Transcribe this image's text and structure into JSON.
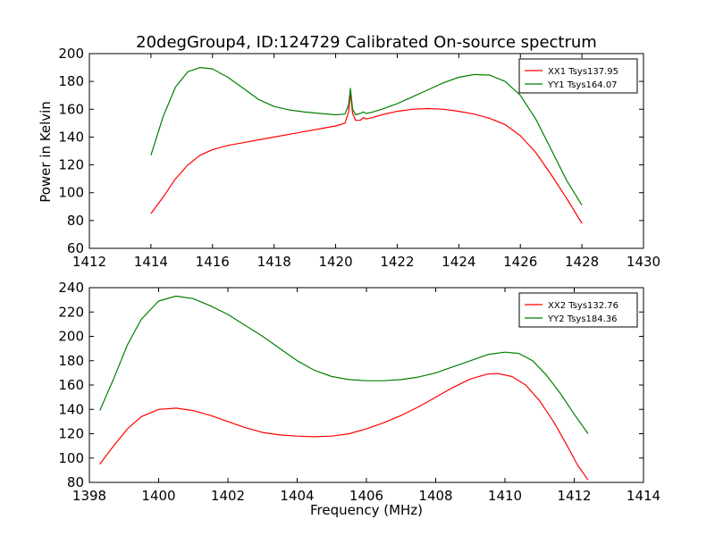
{
  "chart_data": [
    {
      "type": "line",
      "title": "20degGroup4, ID:124729 Calibrated On-source spectrum",
      "xlabel": "",
      "ylabel": "Power in Kelvin",
      "xlim": [
        1412,
        1430
      ],
      "ylim": [
        60,
        200
      ],
      "xticks": [
        1412,
        1414,
        1416,
        1418,
        1420,
        1422,
        1424,
        1426,
        1428,
        1430
      ],
      "yticks": [
        60,
        80,
        100,
        120,
        140,
        160,
        180,
        200
      ],
      "grid": false,
      "legend": "top-right",
      "series": [
        {
          "name": "XX1 Tsys137.95",
          "color": "#ff0000",
          "x": [
            1414.0,
            1414.4,
            1414.8,
            1415.2,
            1415.6,
            1416.0,
            1416.5,
            1417.0,
            1417.5,
            1418.0,
            1418.5,
            1419.0,
            1419.5,
            1420.0,
            1420.3,
            1420.42,
            1420.48,
            1420.55,
            1420.65,
            1420.8,
            1420.9,
            1421.0,
            1421.2,
            1421.5,
            1422.0,
            1422.5,
            1423.0,
            1423.5,
            1424.0,
            1424.5,
            1425.0,
            1425.5,
            1426.0,
            1426.5,
            1427.0,
            1427.5,
            1428.0
          ],
          "y": [
            85,
            97,
            110,
            120,
            127,
            131,
            134,
            136,
            138,
            140,
            142,
            144,
            146,
            148,
            150,
            158,
            172,
            157,
            152,
            152,
            154,
            153,
            154,
            156,
            158.5,
            160,
            160.5,
            160,
            158.5,
            156.5,
            153.5,
            149,
            141,
            129,
            113,
            96,
            78
          ]
        },
        {
          "name": "YY1 Tsys164.07",
          "color": "#008000",
          "x": [
            1414.0,
            1414.4,
            1414.8,
            1415.2,
            1415.6,
            1416.0,
            1416.5,
            1417.0,
            1417.5,
            1418.0,
            1418.5,
            1419.0,
            1419.5,
            1420.0,
            1420.3,
            1420.42,
            1420.48,
            1420.55,
            1420.65,
            1420.8,
            1420.9,
            1421.0,
            1421.2,
            1421.5,
            1422.0,
            1422.5,
            1423.0,
            1423.5,
            1424.0,
            1424.5,
            1425.0,
            1425.5,
            1426.0,
            1426.5,
            1427.0,
            1427.5,
            1428.0
          ],
          "y": [
            127,
            155,
            176,
            187,
            190,
            189,
            183,
            175,
            167,
            162,
            159.5,
            158,
            157,
            156,
            156.5,
            163,
            175,
            160,
            156,
            157,
            158,
            157,
            158,
            160,
            164,
            169,
            174,
            179,
            183,
            185,
            184.5,
            180,
            170,
            153,
            131,
            109,
            91
          ]
        }
      ]
    },
    {
      "type": "line",
      "title": "",
      "xlabel": "Frequency (MHz)",
      "ylabel": "",
      "xlim": [
        1398,
        1414
      ],
      "ylim": [
        80,
        240
      ],
      "xticks": [
        1398,
        1400,
        1402,
        1404,
        1406,
        1408,
        1410,
        1412,
        1414
      ],
      "yticks": [
        80,
        100,
        120,
        140,
        160,
        180,
        200,
        220,
        240
      ],
      "grid": false,
      "legend": "top-right",
      "series": [
        {
          "name": "XX2 Tsys132.76",
          "color": "#ff0000",
          "x": [
            1398.3,
            1398.7,
            1399.1,
            1399.5,
            1400.0,
            1400.5,
            1401.0,
            1401.5,
            1402.0,
            1402.5,
            1403.0,
            1403.5,
            1404.0,
            1404.5,
            1405.0,
            1405.5,
            1406.0,
            1406.5,
            1407.0,
            1407.5,
            1408.0,
            1408.5,
            1409.0,
            1409.5,
            1409.8,
            1410.2,
            1410.6,
            1411.0,
            1411.4,
            1411.8,
            1412.1,
            1412.4
          ],
          "y": [
            95,
            110,
            124,
            134,
            140,
            141,
            139,
            135,
            130,
            125,
            121,
            119,
            118,
            117.5,
            118,
            120,
            124,
            129,
            135,
            142,
            150,
            158,
            165,
            169,
            169.5,
            167,
            160,
            147,
            130,
            110,
            94,
            82
          ]
        },
        {
          "name": "YY2 Tsys184.36",
          "color": "#008000",
          "x": [
            1398.3,
            1398.7,
            1399.1,
            1399.5,
            1400.0,
            1400.5,
            1401.0,
            1401.5,
            1402.0,
            1402.5,
            1403.0,
            1403.5,
            1404.0,
            1404.5,
            1405.0,
            1405.5,
            1406.0,
            1406.5,
            1407.0,
            1407.5,
            1408.0,
            1408.5,
            1409.0,
            1409.5,
            1410.0,
            1410.4,
            1410.8,
            1411.2,
            1411.6,
            1412.0,
            1412.4
          ],
          "y": [
            139,
            165,
            193,
            214,
            229,
            233,
            231,
            225,
            218,
            209,
            200,
            190,
            180,
            172,
            167,
            164.5,
            163.5,
            163.5,
            164.5,
            166.5,
            170,
            175,
            180,
            185,
            187,
            186,
            180,
            168,
            153,
            136,
            120
          ]
        }
      ]
    }
  ]
}
